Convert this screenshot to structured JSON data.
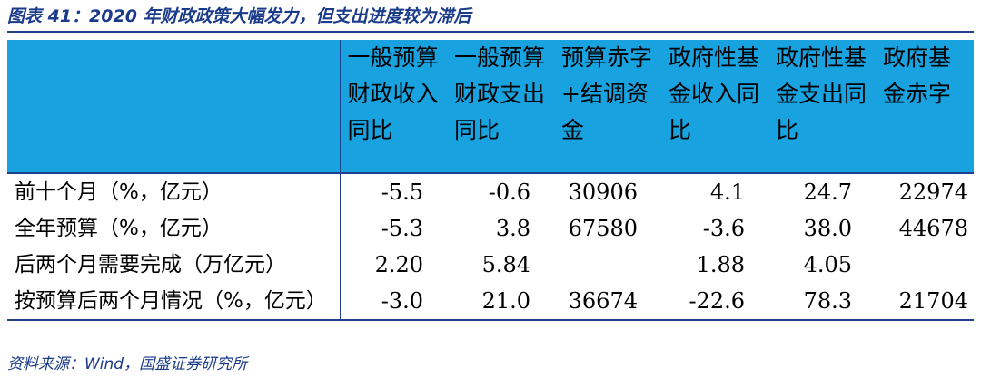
{
  "title": "图表 41：2020 年财政政策大幅发力，但支出进度较为滞后",
  "table": {
    "headers": [
      "一般预算财政收入同比",
      "一般预算财政支出同比",
      "预算赤字+结调资金",
      "政府性基金收入同比",
      "政府性基金支出同比",
      "政府基金赤字"
    ],
    "rows": [
      {
        "label": "前十个月（%，亿元）",
        "values": [
          "-5.5",
          "-0.6",
          "30906",
          "4.1",
          "24.7",
          "22974"
        ]
      },
      {
        "label": "全年预算（%，亿元）",
        "values": [
          "-5.3",
          "3.8",
          "67580",
          "-3.6",
          "38.0",
          "44678"
        ]
      },
      {
        "label": "后两个月需要完成（万亿元）",
        "values": [
          "2.20",
          "5.84",
          "",
          "1.88",
          "4.05",
          ""
        ]
      },
      {
        "label": "按预算后两个月情况（%，亿元）",
        "values": [
          "-3.0",
          "21.0",
          "36674",
          "-22.6",
          "78.3",
          "21704"
        ]
      }
    ]
  },
  "source": "资料来源：Wind，国盛证券研究所",
  "colors": {
    "header_bg": "#19a2e0",
    "rule": "#1f3f8f",
    "title": "#1a3a8a"
  }
}
